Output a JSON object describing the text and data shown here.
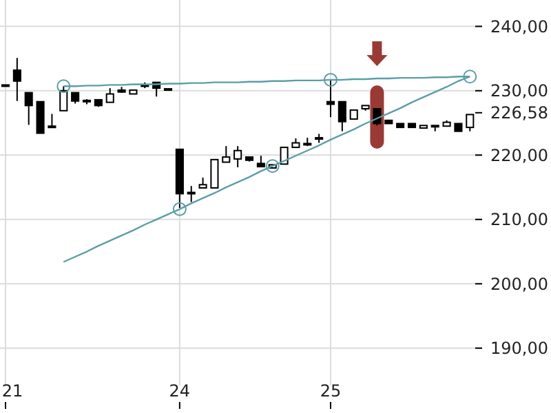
{
  "chart_data": {
    "type": "candlestick",
    "categories": [
      "21",
      null,
      null,
      null,
      null,
      null,
      null,
      null,
      null,
      null,
      null,
      null,
      null,
      null,
      null,
      "24",
      null,
      null,
      null,
      null,
      null,
      null,
      null,
      null,
      null,
      null,
      null,
      null,
      "25",
      null,
      null,
      null,
      null,
      null,
      null,
      null,
      null,
      null,
      null,
      null,
      null
    ],
    "ohlc": [
      [
        230.9,
        230.9,
        230.9,
        230.9
      ],
      [
        233.2,
        235.1,
        228.4,
        231.5
      ],
      [
        229.7,
        229.7,
        224.7,
        227.7
      ],
      [
        228.3,
        228.3,
        223.4,
        223.4
      ],
      [
        224.5,
        226.4,
        224.3,
        224.4
      ],
      [
        226.9,
        230.7,
        226.9,
        230.0
      ],
      [
        229.7,
        229.7,
        228.0,
        228.4
      ],
      [
        228.5,
        228.7,
        227.9,
        228.3
      ],
      [
        228.6,
        228.6,
        227.5,
        227.7
      ],
      [
        228.2,
        230.4,
        228.2,
        229.5
      ],
      [
        230.1,
        230.6,
        229.7,
        229.8
      ],
      [
        229.5,
        230.1,
        229.5,
        230.1
      ],
      [
        230.9,
        231.3,
        230.4,
        230.9
      ],
      [
        231.3,
        231.3,
        229.1,
        230.4
      ],
      [
        230.3,
        230.3,
        230.3,
        230.3
      ],
      [
        220.9,
        220.9,
        211.8,
        214.0
      ],
      [
        214.2,
        215.2,
        212.7,
        214.0
      ],
      [
        214.9,
        216.5,
        214.9,
        215.4
      ],
      [
        214.9,
        219.3,
        214.9,
        219.3
      ],
      [
        218.9,
        221.4,
        218.9,
        219.7
      ],
      [
        219.4,
        221.4,
        218.1,
        220.7
      ],
      [
        219.7,
        219.7,
        219.0,
        219.2
      ],
      [
        218.7,
        219.9,
        218.2,
        218.2
      ],
      [
        218.0,
        218.5,
        218.0,
        218.5
      ],
      [
        218.6,
        221.2,
        218.6,
        221.2
      ],
      [
        221.2,
        222.6,
        221.2,
        221.9
      ],
      [
        221.7,
        222.7,
        221.4,
        221.8
      ],
      [
        222.7,
        223.3,
        221.9,
        222.5
      ],
      [
        228.3,
        231.6,
        225.9,
        227.9
      ],
      [
        228.3,
        228.3,
        223.7,
        225.2
      ],
      [
        225.6,
        227.0,
        225.6,
        227.0
      ],
      [
        227.2,
        227.7,
        226.9,
        227.7
      ],
      [
        227.2,
        227.2,
        224.6,
        224.9
      ],
      [
        225.4,
        225.5,
        224.9,
        224.9
      ],
      [
        224.9,
        224.9,
        224.3,
        224.3
      ],
      [
        224.9,
        224.9,
        224.2,
        224.3
      ],
      [
        224.2,
        224.6,
        224.2,
        224.6
      ],
      [
        224.6,
        224.6,
        223.7,
        224.6
      ],
      [
        224.5,
        225.4,
        224.5,
        225.1
      ],
      [
        224.9,
        224.9,
        223.7,
        223.7
      ],
      [
        224.3,
        226.3,
        223.7,
        226.3
      ]
    ],
    "series": [
      {
        "type": "line",
        "color": "#5a9ea6",
        "values": [
          null,
          null,
          null,
          null,
          null,
          230.7,
          230.7,
          230.8,
          230.8,
          230.9,
          230.9,
          231.0,
          231.0,
          231.0,
          231.1,
          231.1,
          231.2,
          231.2,
          231.3,
          231.3,
          231.3,
          231.4,
          231.4,
          231.5,
          231.5,
          231.6,
          231.6,
          231.6,
          231.7,
          231.7,
          231.8,
          231.8,
          231.9,
          231.9,
          232.0,
          232.0,
          232.0,
          232.1,
          232.1,
          232.2,
          232.2
        ]
      },
      {
        "type": "line",
        "color": "#5a9ea6",
        "values": [
          null,
          null,
          null,
          null,
          null,
          203.4,
          204.2,
          205.0,
          205.9,
          206.7,
          207.5,
          208.3,
          209.2,
          210.0,
          210.8,
          211.6,
          212.5,
          213.3,
          214.1,
          215.0,
          215.8,
          216.6,
          217.5,
          218.3,
          219.1,
          219.9,
          220.7,
          221.5,
          222.4,
          223.2,
          224.0,
          224.9,
          225.7,
          226.5,
          227.3,
          228.2,
          229.0,
          229.8,
          230.6,
          231.5,
          232.2
        ]
      },
      {
        "type": "scatter",
        "color": "#5a9ea6",
        "marker": "circle",
        "values": [
          null,
          null,
          null,
          null,
          null,
          230.7,
          null,
          null,
          null,
          null,
          null,
          null,
          null,
          null,
          null,
          211.6,
          null,
          null,
          null,
          null,
          null,
          null,
          null,
          218.3,
          null,
          null,
          null,
          null,
          231.7,
          null,
          null,
          null,
          null,
          null,
          null,
          null,
          null,
          null,
          null,
          null,
          232.2
        ]
      }
    ],
    "ylim": [
      184.2,
      244.1
    ],
    "yticks": [
      {
        "value": 190,
        "label": "190,00"
      },
      {
        "value": 200,
        "label": "200,00"
      },
      {
        "value": 210,
        "label": "210,00"
      },
      {
        "value": 220,
        "label": "220,00"
      },
      {
        "value": 230,
        "label": "230,00"
      },
      {
        "value": 240,
        "label": "240,00"
      }
    ],
    "ref_lines": [
      {
        "axis": "y",
        "value": 226.58,
        "label": "226,58"
      }
    ],
    "grid": true
  }
}
